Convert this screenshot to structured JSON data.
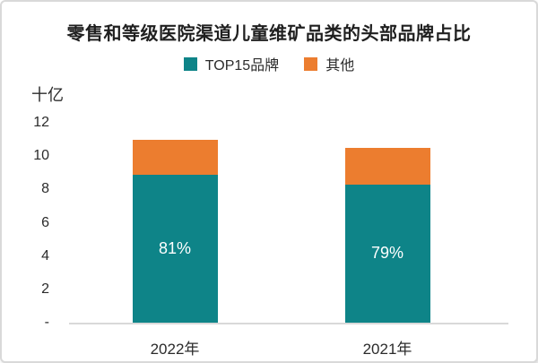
{
  "chart_data": {
    "type": "bar",
    "stacked": true,
    "title": "零售和等级医院渠道儿童维矿品类的头部品牌占比",
    "unit_label": "十亿",
    "categories": [
      "2022年",
      "2021年"
    ],
    "series": [
      {
        "name": "TOP15品牌",
        "color": "#0E8488",
        "values": [
          8.9,
          8.3
        ],
        "value_labels": [
          "81%",
          "79%"
        ]
      },
      {
        "name": "其他",
        "color": "#EC7D2F",
        "values": [
          2.1,
          2.2
        ],
        "value_labels": [
          "",
          ""
        ]
      }
    ],
    "totals": [
      11.0,
      10.5
    ],
    "ylim": [
      0,
      12
    ],
    "yticks": [
      {
        "value": 12,
        "label": "12"
      },
      {
        "value": 10,
        "label": "10"
      },
      {
        "value": 8,
        "label": "8"
      },
      {
        "value": 6,
        "label": "6"
      },
      {
        "value": 4,
        "label": "4"
      },
      {
        "value": 2,
        "label": "2"
      },
      {
        "value": 0,
        "label": "-"
      }
    ],
    "grid": false,
    "legend_position": "top",
    "axis_color": "#D9D9D9",
    "text_color": "#2B2B2B"
  }
}
